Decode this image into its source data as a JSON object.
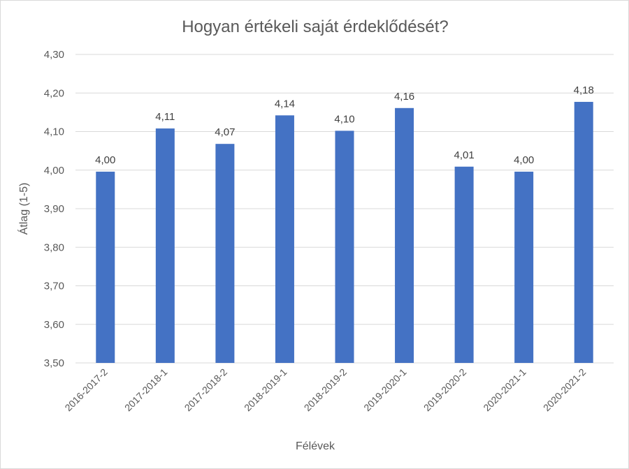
{
  "chart_data": {
    "type": "bar",
    "title": "Hogyan értékeli saját érdeklődését?",
    "xlabel": "Félévek",
    "ylabel": "Átlag (1-5)",
    "ylim": [
      3.5,
      4.3
    ],
    "ytick_step": 0.1,
    "ytick_labels": [
      "3,50",
      "3,60",
      "3,70",
      "3,80",
      "3,90",
      "4,00",
      "4,10",
      "4,20",
      "4,30"
    ],
    "categories": [
      "2016-2017-2",
      "2017-2018-1",
      "2017-2018-2",
      "2018-2019-1",
      "2018-2019-2",
      "2019-2020-1",
      "2019-2020-2",
      "2020-2021-1",
      "2020-2021-2"
    ],
    "values": [
      3.996,
      4.108,
      4.068,
      4.142,
      4.102,
      4.161,
      4.009,
      3.996,
      4.177
    ],
    "data_labels": [
      "4,00",
      "4,11",
      "4,07",
      "4,14",
      "4,10",
      "4,16",
      "4,01",
      "4,00",
      "4,18"
    ],
    "grid": true,
    "legend": "none",
    "bar_color": "#4472c4"
  }
}
